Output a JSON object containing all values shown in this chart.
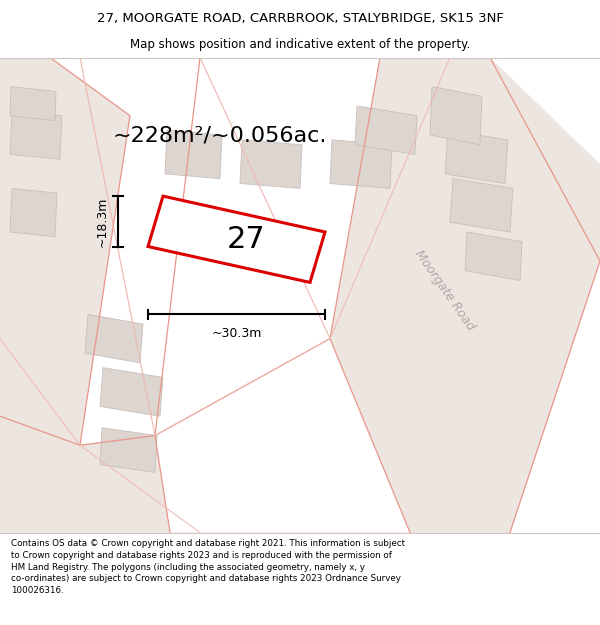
{
  "title_line1": "27, MOORGATE ROAD, CARRBROOK, STALYBRIDGE, SK15 3NF",
  "title_line2": "Map shows position and indicative extent of the property.",
  "footer_text": "Contains OS data © Crown copyright and database right 2021. This information is subject\nto Crown copyright and database rights 2023 and is reproduced with the permission of\nHM Land Registry. The polygons (including the associated geometry, namely x, y\nco-ordinates) are subject to Crown copyright and database rights 2023 Ordnance Survey\n100026316.",
  "area_label": "~228m²/~0.056ac.",
  "number_label": "27",
  "width_label": "~30.3m",
  "height_label": "~18.3m",
  "road_label": "Moorgate Road",
  "map_bg": "#f7f2ef",
  "plot_fill": "#ffffff",
  "plot_edge_color": "#dd0000",
  "building_fill": "#ddd5d0",
  "building_edge": "#c8c0bc",
  "road_area_fill": "#ede5e0",
  "pink_line": "#e8968a",
  "light_pink_line": "#edb8b0",
  "gray_line": "#c8c0bc"
}
